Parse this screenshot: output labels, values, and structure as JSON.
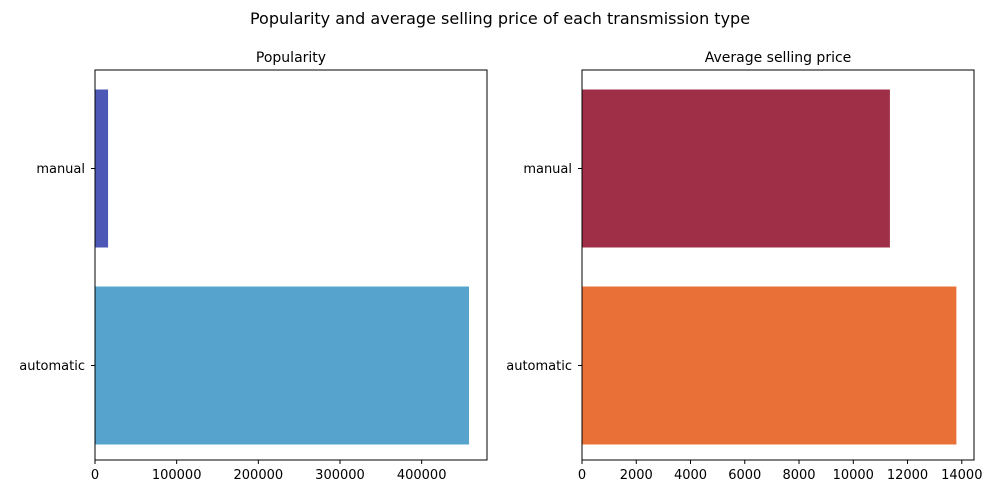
{
  "suptitle": "Popularity and average selling price of each transmission type",
  "chart_data": [
    {
      "type": "bar",
      "orientation": "horizontal",
      "title": "Popularity",
      "categories": [
        "manual",
        "automatic"
      ],
      "values": [
        16000,
        458000
      ],
      "colors": [
        "#4c57b6",
        "#56a4ce"
      ],
      "xlim": [
        0,
        480000
      ],
      "xticks": [
        0,
        100000,
        200000,
        300000,
        400000
      ],
      "xlabel": "",
      "ylabel": "",
      "grid": false
    },
    {
      "type": "bar",
      "orientation": "horizontal",
      "title": "Average selling price",
      "categories": [
        "manual",
        "automatic"
      ],
      "values": [
        11350,
        13800
      ],
      "colors": [
        "#9e2f47",
        "#e97137"
      ],
      "xlim": [
        0,
        14450
      ],
      "xticks": [
        0,
        2000,
        4000,
        6000,
        8000,
        10000,
        12000,
        14000
      ],
      "xlabel": "",
      "ylabel": "",
      "grid": false
    }
  ]
}
